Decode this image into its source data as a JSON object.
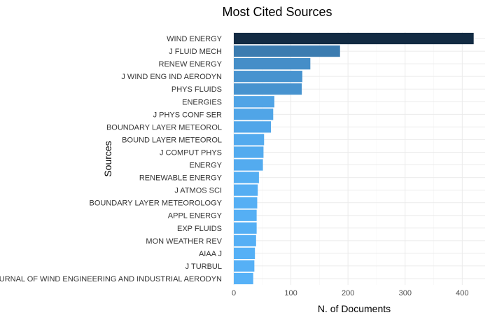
{
  "chart_data": {
    "type": "bar",
    "orientation": "horizontal",
    "title": "Most Cited Sources",
    "xlabel": "N. of Documents",
    "ylabel": "Sources",
    "xlim": [
      0,
      440
    ],
    "xticks": [
      0,
      100,
      200,
      300,
      400
    ],
    "grid": true,
    "legend": "none",
    "categories": [
      "WIND ENERGY",
      "J FLUID MECH",
      "RENEW ENERGY",
      "J WIND ENG IND AERODYN",
      "PHYS FLUIDS",
      "ENERGIES",
      "J PHYS CONF SER",
      "BOUNDARY LAYER METEOROL",
      "BOUND LAYER METEOROL",
      "J COMPUT PHYS",
      "ENERGY",
      "RENEWABLE ENERGY",
      "J ATMOS SCI",
      "BOUNDARY LAYER METEOROLOGY",
      "APPL ENERGY",
      "EXP FLUIDS",
      "MON WEATHER REV",
      "AIAA J",
      "J TURBUL",
      "JOURNAL OF WIND ENGINEERING AND INDUSTRIAL AERODYN"
    ],
    "values": [
      420,
      186,
      134,
      120,
      119,
      71,
      69,
      65,
      53,
      52,
      51,
      44,
      42,
      41,
      40,
      40,
      39,
      37,
      36,
      34
    ],
    "color_low": "#56B1F7",
    "color_high": "#132B43"
  }
}
